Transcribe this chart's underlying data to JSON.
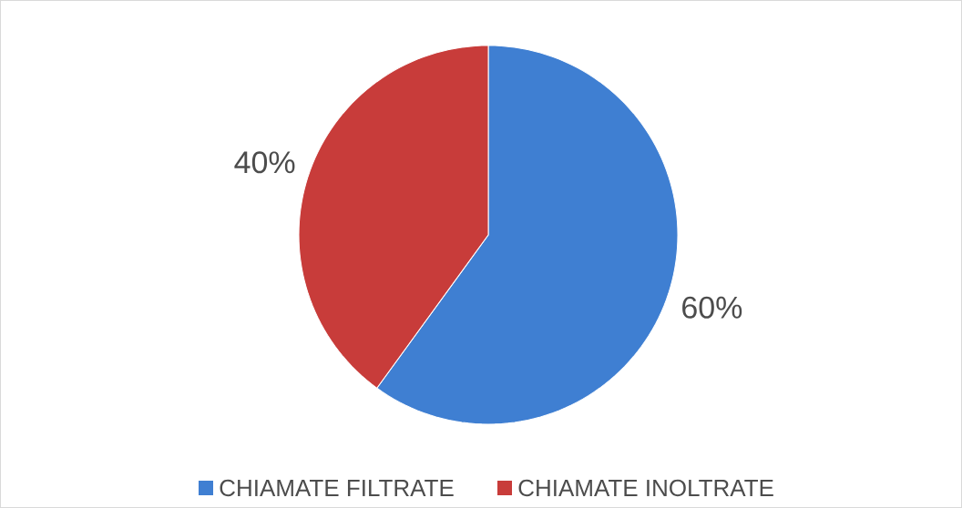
{
  "chart_data": {
    "type": "pie",
    "categories": [
      "CHIAMATE FILTRATE",
      "CHIAMATE INOLTRATE"
    ],
    "values": [
      60,
      40
    ],
    "colors": [
      "#3f7fd2",
      "#c83c3a"
    ],
    "value_labels": [
      "60%",
      "40%"
    ],
    "legend": "bottom"
  }
}
